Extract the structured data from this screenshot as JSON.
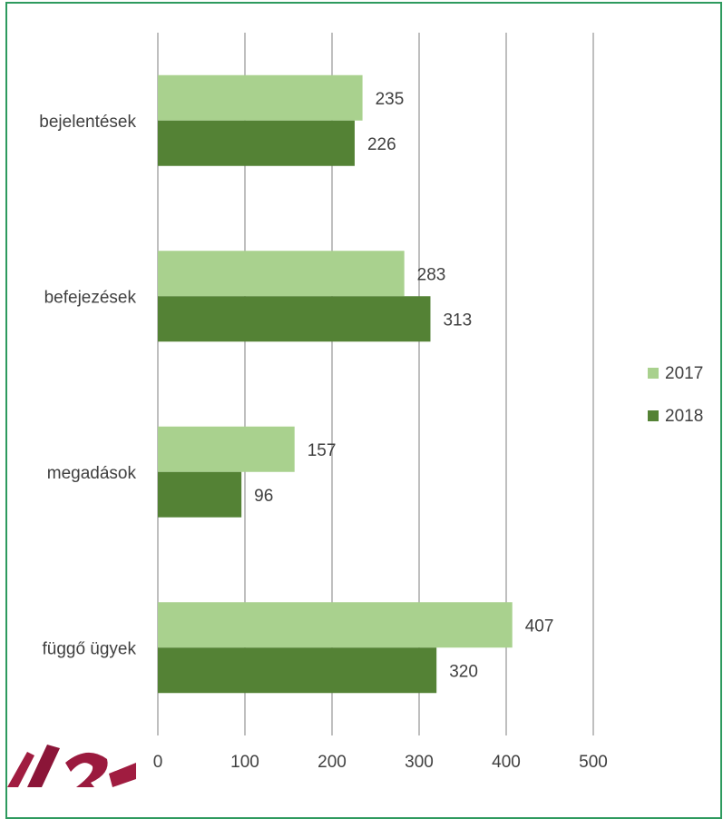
{
  "chart_data": {
    "type": "bar",
    "orientation": "horizontal",
    "categories": [
      "bejelentések",
      "befejezések",
      "megadások",
      "függő ügyek"
    ],
    "series": [
      {
        "name": "2017",
        "values": [
          235,
          283,
          157,
          407
        ],
        "color": "#a9d18e"
      },
      {
        "name": "2018",
        "values": [
          226,
          313,
          96,
          320
        ],
        "color": "#548235"
      }
    ],
    "xlim": [
      0,
      500
    ],
    "x_ticks": [
      0,
      100,
      200,
      300,
      400,
      500
    ],
    "grid": true,
    "legend_position": "right"
  },
  "frame_color": "#2e9a5e",
  "logo_icon": "partial-logo-icon"
}
